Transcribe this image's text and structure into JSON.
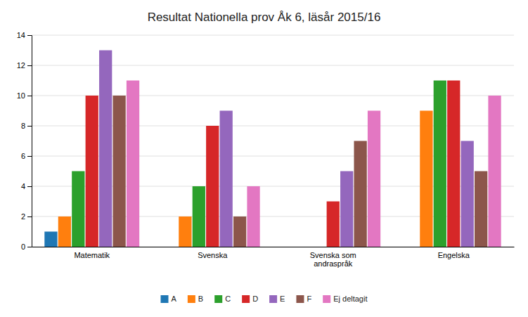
{
  "chart_data": {
    "type": "bar",
    "title": "Resultat Nationella prov Åk 6, läsår 2015/16",
    "categories": [
      "Matematik",
      "Svenska",
      "Svenska som\nandraspråk",
      "Engelska"
    ],
    "series": [
      {
        "name": "A",
        "values": [
          1,
          0,
          0,
          0
        ]
      },
      {
        "name": "B",
        "values": [
          2,
          2,
          0,
          9
        ]
      },
      {
        "name": "C",
        "values": [
          5,
          4,
          0,
          11
        ]
      },
      {
        "name": "D",
        "values": [
          10,
          8,
          3,
          11
        ]
      },
      {
        "name": "E",
        "values": [
          13,
          9,
          5,
          7
        ]
      },
      {
        "name": "F",
        "values": [
          10,
          2,
          7,
          5
        ]
      },
      {
        "name": "Ej deltagit",
        "values": [
          11,
          4,
          9,
          10
        ]
      }
    ],
    "ylim": [
      0,
      14
    ],
    "yticks": [
      0,
      2,
      4,
      6,
      8,
      10,
      12,
      14
    ],
    "grid": true,
    "legend": "bottom"
  }
}
